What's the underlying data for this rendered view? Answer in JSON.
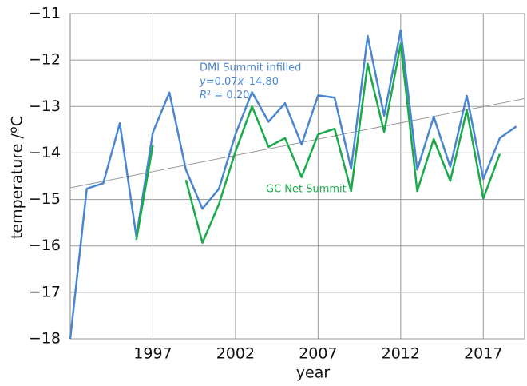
{
  "chart_data": {
    "type": "line",
    "x_label": "year",
    "y_label": "temperature /ºC",
    "x": [
      1992,
      1993,
      1994,
      1995,
      1996,
      1997,
      1998,
      1999,
      2000,
      2001,
      2002,
      2003,
      2004,
      2005,
      2006,
      2007,
      2008,
      2009,
      2010,
      2011,
      2012,
      2013,
      2014,
      2015,
      2016,
      2017,
      2018,
      2019
    ],
    "series": [
      {
        "name": "DMI Summit infilled",
        "color": "#4a86cf",
        "values": [
          -18,
          -14.77,
          -14.65,
          -13.36,
          -15.8,
          -13.56,
          -12.7,
          -14.36,
          -15.2,
          -14.77,
          -13.6,
          -12.69,
          -13.33,
          -12.93,
          -13.82,
          -12.76,
          -12.81,
          -14.34,
          -11.48,
          -13.2,
          -11.36,
          -14.36,
          -13.22,
          -14.3,
          -12.77,
          -14.56,
          -13.68,
          -13.43
        ]
      },
      {
        "name": "GC Net Summit",
        "color": "#1aaa4a",
        "values": [
          null,
          null,
          null,
          null,
          -15.87,
          -13.83,
          null,
          -14.58,
          -15.93,
          -15.1,
          -13.97,
          -13.0,
          -13.87,
          -13.68,
          -14.52,
          -13.6,
          -13.48,
          -14.82,
          -12.08,
          -13.55,
          -11.65,
          -14.82,
          -13.7,
          -14.6,
          -13.08,
          -14.98,
          -14.02,
          null
        ]
      }
    ],
    "trendline": {
      "x": [
        1992,
        2019.5
      ],
      "values": [
        -14.75,
        -12.83
      ],
      "color": "#999999"
    },
    "equation": [
      "y",
      "=0.07",
      "x",
      "–14.80"
    ],
    "r_squared": [
      "R",
      "² = 0.20"
    ],
    "xlim": [
      1992,
      2019.5
    ],
    "xticks": [
      1997,
      2002,
      2007,
      2012,
      2017
    ],
    "ylim": [
      -18,
      -11
    ],
    "yticks": [
      {
        "value": -18,
        "label": "−18"
      },
      {
        "value": -17,
        "label": "−17"
      },
      {
        "value": -16,
        "label": "−16"
      },
      {
        "value": -15,
        "label": "−15"
      },
      {
        "value": -14,
        "label": "−14"
      },
      {
        "value": -13,
        "label": "−13"
      },
      {
        "value": -12,
        "label": "−12"
      },
      {
        "value": -11,
        "label": "−11"
      }
    ],
    "grid": true
  }
}
